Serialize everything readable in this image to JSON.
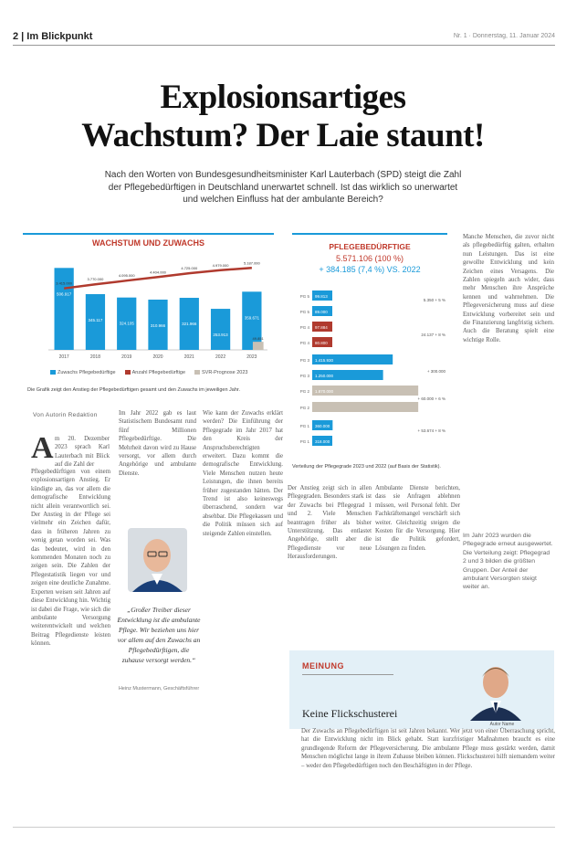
{
  "header": {
    "section": "2 | Im Blickpunkt",
    "meta": "Nr. 1 · Donnerstag, 11. Januar 2024"
  },
  "headline": {
    "line1": "Explosionsartiges",
    "line2": "Wachstum? Der Laie staunt!"
  },
  "lead": "Nach den Worten von Bundesgesundheitsminister Karl Lauterbach (SPD) steigt die Zahl der Pflegebedürftigen in Deutschland unerwartet schnell. Ist das wirklich so unerwartet und welchen Einfluss hat der ambulante Bereich?",
  "chart_data": [
    {
      "type": "bar",
      "title": "WACHSTUM UND ZUWACHS",
      "categories": [
        "2017",
        "2018",
        "2019",
        "2020",
        "2021",
        "2022",
        "2023"
      ],
      "series": [
        {
          "name": "Zuwachs Pflegebedürftige",
          "values": [
            507000,
            345000,
            324000,
            311000,
            322000,
            254000,
            360000
          ],
          "color": "#1a9ad9"
        },
        {
          "name": "Anzahl Pflegebedürftige",
          "values": [
            3420000,
            3770000,
            4090000,
            4400000,
            4730000,
            4990000,
            5190000
          ],
          "color": "#b03a2e"
        },
        {
          "name": "SVR-Prognose 2023",
          "values": [
            null,
            null,
            null,
            null,
            null,
            null,
            50000
          ],
          "color": "#c8c0b4"
        }
      ],
      "bar_labels": [
        "506.917",
        "345.117",
        "324.105",
        "310.966",
        "321.966",
        "253.913",
        "359.671"
      ],
      "line_labels": [
        "3.415.000",
        "3.770.000",
        "4.095.000",
        "4.404.000",
        "4.725.000",
        "4.979.000",
        "5.187.000"
      ],
      "extra_label": "49.851",
      "legend_position": "bottom",
      "caption": "Die Grafik zeigt den Anstieg der Pflegebedürftigen gesamt und den Zuwachs im jeweiligen Jahr."
    },
    {
      "type": "bar",
      "orientation": "horizontal",
      "title": "PFLEGEBEDÜRFTIGE",
      "total": "5.571.106 (100 %)",
      "change": "+ 384.185 (7,4 %) VS. 2022",
      "categories": [
        "PG 5",
        "PG 4",
        "PG 3",
        "PG 2",
        "PG 1"
      ],
      "groups": [
        {
          "name": "Pflegeheim",
          "values": [
            99000,
            88000
          ],
          "labels": [
            "99.813",
            "89.000"
          ],
          "color": "#1a9ad9"
        },
        {
          "name": "Pflegeheim Veränderung",
          "values": [
            97000,
            80000
          ],
          "labels": [
            "97.884",
            "80.800"
          ],
          "color": "#b03a2e"
        },
        {
          "name": "Zuhause",
          "values": [
            1420000,
            1250000
          ],
          "labels": [
            "1.415.930",
            "1.250.000"
          ],
          "color": "#1a9ad9"
        },
        {
          "name": "Zuhause Veränderung",
          "values": [
            1870000
          ],
          "labels": [
            "1.870.000"
          ],
          "color": "#c8c0b4"
        },
        {
          "name": "Ambulant",
          "values": [
            360000,
            318000
          ],
          "labels": [
            "360.000",
            "318.000"
          ],
          "color": "#1a9ad9"
        }
      ],
      "side_labels": [
        "5.350 + 5 %",
        "24.137 + 8 %",
        "+ 300.000",
        "+ 60.000 + 6 %",
        "+ 53.674 + 8 %"
      ],
      "caption": "Verteilung der Pflegegrade 2023 und 2022 (auf Basis der Statistik)."
    }
  ],
  "byline": "Von Autorin Redaktion",
  "article": {
    "dropcap": "A",
    "col1_start": "m 20. Dezember 2023 sprach Karl Lauterbach mit Blick auf die Zahl der",
    "col1": "Pflegebedürftigen von einem explosionsartigen Anstieg. Er kündigte an, das vor allem die demografische Entwicklung nicht allein verantwortlich sei. Der Anstieg in der Pflege sei vielmehr ein Zeichen dafür, dass in früheren Jahren zu wenig getan worden sei. Was das bedeutet, wird in den kommenden Monaten noch zu zeigen sein. Die Zahlen der Pflegestatistik liegen vor und zeigen eine deutliche Zunahme. Experten weisen seit Jahren auf diese Entwicklung hin. Wichtig ist dabei die Frage, wie sich die ambulante Versorgung weiterentwickelt und welchen Beitrag Pflegedienste leisten können.",
    "col2": "Im Jahr 2022 gab es laut Statistischem Bundesamt rund fünf Millionen Pflegebedürftige. Die Mehrheit davon wird zu Hause versorgt, vor allem durch Angehörige und ambulante Dienste.",
    "col3": "Wie kann der Zuwachs erklärt werden? Die Einführung der Pflegegrade im Jahr 2017 hat den Kreis der Anspruchsberechtigten erweitert. Dazu kommt die demografische Entwicklung. Viele Menschen nutzen heute Leistungen, die ihnen bereits früher zugestanden hätten. Der Trend ist also keineswegs überraschend, sondern war absehbar. Die Pflegekassen und die Politik müssen sich auf steigende Zahlen einstellen.",
    "quote": "„Großer Treiber dieser Entwicklung ist die ambulante Pflege. Wir beziehen uns hier vor allem auf den Zuwachs an Pflegebedürftigen, die zuhause versorgt werden.“",
    "quote_source": "Heinz Mustermann, Geschäftsführer",
    "col4": "Der Anstieg zeigt sich in allen Pflegegraden. Besonders stark ist der Zuwachs bei Pflegegrad 1 und 2. Viele Menschen beantragen früher als bisher Unterstützung. Das entlastet Angehörige, stellt aber die Pflegedienste vor neue Herausforderungen.",
    "col5": "Ambulante Dienste berichten, dass sie Anfragen ablehnen müssen, weil Personal fehlt. Der Fachkräftemangel verschärft sich weiter. Gleichzeitig steigen die Kosten für die Versorgung. Hier ist die Politik gefordert, Lösungen zu finden.",
    "col6": "Manche Menschen, die zuvor nicht als pflegebedürftig galten, erhalten nun Leistungen. Das ist eine gewollte Entwicklung und kein Zeichen eines Versagens. Die Zahlen spiegeln auch wider, dass mehr Menschen ihre Ansprüche kennen und wahrnehmen. Die Pflegeversicherung muss auf diese Entwicklung vorbereitet sein und die Finanzierung langfristig sichern. Auch die Beratung spielt eine wichtige Rolle.",
    "col6b": "Im Jahr 2023 wurden die Pflegegrade erneut ausgewertet. Die Verteilung zeigt: Pflegegrad 2 und 3 bilden die größten Gruppen. Der Anteil der ambulant Versorgten steigt weiter an."
  },
  "opinion": {
    "label": "MEINUNG",
    "title": "Keine Flickschusterei",
    "photo_caption": "Autor Name",
    "text": "Der Zuwachs an Pflegebedürftigen ist seit Jahren bekannt. Wer jetzt von einer Überraschung spricht, hat die Entwicklung nicht im Blick gehabt. Statt kurzfristiger Maßnahmen braucht es eine grundlegende Reform der Pflegeversicherung. Die ambulante Pflege muss gestärkt werden, damit Menschen möglichst lange in ihrem Zuhause bleiben können. Flickschusterei hilft niemandem weiter – weder den Pflegebedürftigen noch den Beschäftigten in der Pflege."
  }
}
